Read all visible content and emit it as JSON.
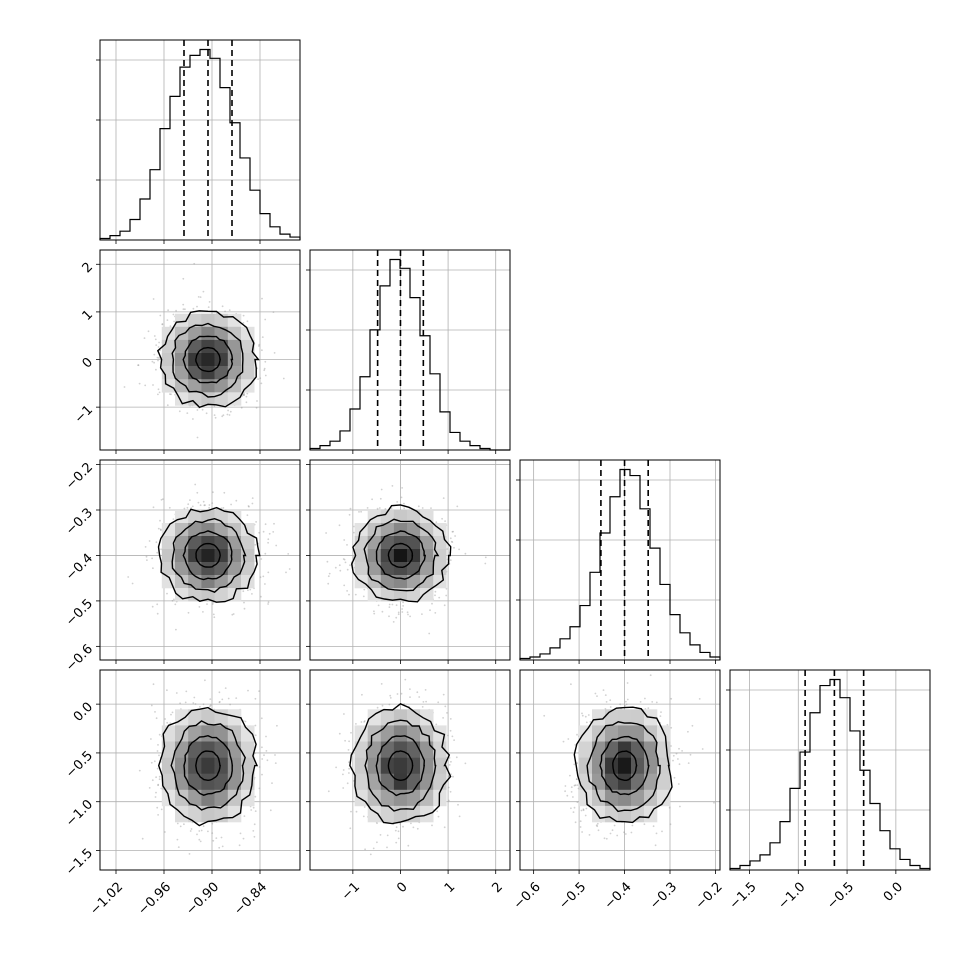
{
  "chart_data": {
    "type": "corner",
    "grid": true,
    "n_params": 4,
    "params": [
      {
        "index": 0,
        "range": [
          -1.04,
          -0.79
        ],
        "ticks": [
          -1.02,
          -0.96,
          -0.9,
          -0.84
        ],
        "tick_labels": [
          "−1.02",
          "−0.96",
          "−0.90",
          "−0.84"
        ],
        "mean": -0.905,
        "std": 0.03,
        "quantiles": [
          -0.935,
          -0.905,
          -0.875
        ],
        "hist_bin_counts": [
          1,
          3,
          6,
          14,
          28,
          48,
          76,
          98,
          118,
          126,
          130,
          124,
          104,
          80,
          56,
          34,
          18,
          9,
          4,
          2
        ]
      },
      {
        "index": 1,
        "range": [
          -1.9,
          2.3
        ],
        "ticks": [
          -1,
          0,
          1,
          2
        ],
        "tick_labels": [
          "−1",
          "0",
          "1",
          "2"
        ],
        "mean": 0.0,
        "std": 0.5,
        "quantiles": [
          -0.48,
          0.0,
          0.48
        ],
        "hist_bin_counts": [
          1,
          3,
          6,
          13,
          28,
          50,
          82,
          112,
          130,
          124,
          104,
          78,
          52,
          26,
          12,
          6,
          3,
          1,
          0,
          0
        ]
      },
      {
        "index": 2,
        "range": [
          -0.63,
          -0.19
        ],
        "ticks": [
          -0.6,
          -0.5,
          -0.4,
          -0.3,
          -0.2
        ],
        "tick_labels": [
          "−0.6",
          "−0.5",
          "−0.4",
          "−0.3",
          "−0.2"
        ],
        "mean": -0.4,
        "std": 0.052,
        "quantiles": [
          -0.452,
          -0.4,
          -0.348
        ],
        "hist_bin_counts": [
          1,
          2,
          4,
          8,
          14,
          22,
          36,
          58,
          84,
          108,
          126,
          122,
          100,
          74,
          50,
          30,
          18,
          10,
          5,
          2
        ]
      },
      {
        "index": 3,
        "range": [
          -1.7,
          0.35
        ],
        "ticks": [
          -1.5,
          -1.0,
          -0.5,
          0.0
        ],
        "tick_labels": [
          "−1.5",
          "−1.0",
          "−0.5",
          "0.0"
        ],
        "mean": -0.63,
        "std": 0.3,
        "quantiles": [
          -0.93,
          -0.63,
          -0.33
        ],
        "hist_bin_counts": [
          1,
          3,
          6,
          10,
          18,
          32,
          54,
          78,
          104,
          122,
          126,
          114,
          92,
          66,
          44,
          26,
          14,
          7,
          3,
          1
        ]
      }
    ],
    "y_tick_labels": [
      null,
      [
        "−1",
        "0",
        "1",
        "2"
      ],
      [
        "−0.6",
        "−0.5",
        "−0.4",
        "−0.3",
        "−0.2"
      ],
      [
        "−1.5",
        "−1.0",
        "−0.5",
        "0.0"
      ]
    ],
    "y_ticks": [
      null,
      [
        -1,
        0,
        1,
        2
      ],
      [
        -0.6,
        -0.5,
        -0.4,
        -0.3,
        -0.2
      ],
      [
        -1.5,
        -1.0,
        -0.5,
        0.0
      ]
    ],
    "contour_levels_sigma": [
      0.5,
      1.0,
      1.5,
      2.0
    ],
    "colors": {
      "line": "#000000",
      "scatter": "#9a9a9a",
      "grid": "#b0b0b0"
    }
  }
}
